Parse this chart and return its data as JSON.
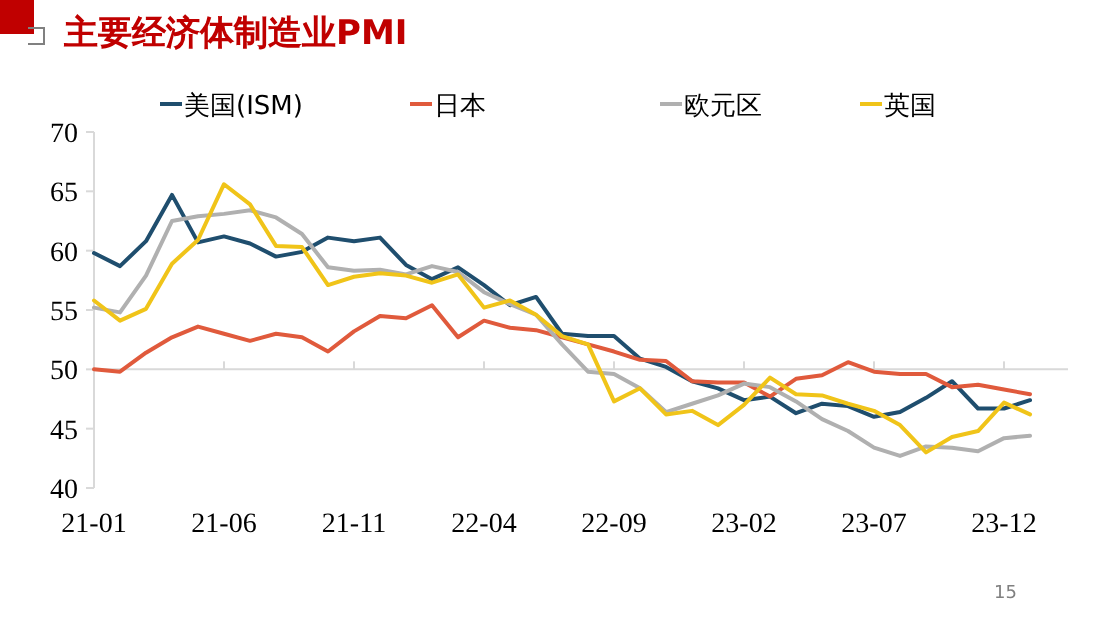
{
  "chart_data": {
    "type": "line",
    "title": "主要经济体制造业PMI",
    "categories": [
      "21-01",
      null,
      null,
      null,
      null,
      "21-06",
      null,
      null,
      null,
      null,
      "21-11",
      null,
      null,
      null,
      null,
      "22-04",
      null,
      null,
      null,
      null,
      "22-09",
      null,
      null,
      null,
      null,
      "23-02",
      null,
      null,
      null,
      null,
      "23-07",
      null,
      null,
      null,
      null,
      "23-12",
      null
    ],
    "series": [
      {
        "name": "美国(ISM)",
        "color": "#1f4e6e",
        "values": [
          59.8,
          58.7,
          60.8,
          64.7,
          60.7,
          61.2,
          60.6,
          59.5,
          59.9,
          61.1,
          60.8,
          61.1,
          58.8,
          57.6,
          58.6,
          57.1,
          55.4,
          56.1,
          53.0,
          52.8,
          52.8,
          50.9,
          50.2,
          49.0,
          48.4,
          47.4,
          47.7,
          46.3,
          47.1,
          46.9,
          46.0,
          46.4,
          47.6,
          49.0,
          46.7,
          46.7,
          47.4
        ]
      },
      {
        "name": "日本",
        "color": "#e05a3c",
        "values": [
          50.0,
          49.8,
          51.4,
          52.7,
          53.6,
          53.0,
          52.4,
          53.0,
          52.7,
          51.5,
          53.2,
          54.5,
          54.3,
          55.4,
          52.7,
          54.1,
          53.5,
          53.3,
          52.7,
          52.1,
          51.5,
          50.8,
          50.7,
          49.0,
          48.9,
          48.9,
          47.7,
          49.2,
          49.5,
          50.6,
          49.8,
          49.6,
          49.6,
          48.5,
          48.7,
          48.3,
          47.9
        ]
      },
      {
        "name": "欧元区",
        "color": "#b0b0b0",
        "values": [
          55.2,
          54.8,
          57.9,
          62.5,
          62.9,
          63.1,
          63.4,
          62.8,
          61.4,
          58.6,
          58.3,
          58.4,
          58.0,
          58.7,
          58.2,
          56.5,
          55.5,
          54.6,
          52.1,
          49.8,
          49.6,
          48.4,
          46.4,
          47.1,
          47.8,
          48.8,
          48.5,
          47.3,
          45.8,
          44.8,
          43.4,
          42.7,
          43.5,
          43.4,
          43.1,
          44.2,
          44.4
        ]
      },
      {
        "name": "英国",
        "color": "#f0c419",
        "values": [
          55.8,
          54.1,
          55.1,
          58.9,
          60.9,
          65.6,
          63.9,
          60.4,
          60.3,
          57.1,
          57.8,
          58.1,
          57.9,
          57.3,
          58.0,
          55.2,
          55.8,
          54.6,
          52.8,
          52.1,
          47.3,
          48.4,
          46.2,
          46.5,
          45.3,
          47.0,
          49.3,
          47.9,
          47.8,
          47.1,
          46.5,
          45.3,
          43.0,
          44.3,
          44.8,
          47.2,
          46.2
        ]
      }
    ],
    "ylim": [
      40,
      70
    ],
    "yticks": [
      40,
      45,
      50,
      55,
      60,
      65,
      70
    ],
    "ref_lines": [
      {
        "axis": "y",
        "value": 50,
        "color": "#d9d9d9"
      }
    ],
    "legend": "top",
    "annotations": [
      "15"
    ]
  }
}
